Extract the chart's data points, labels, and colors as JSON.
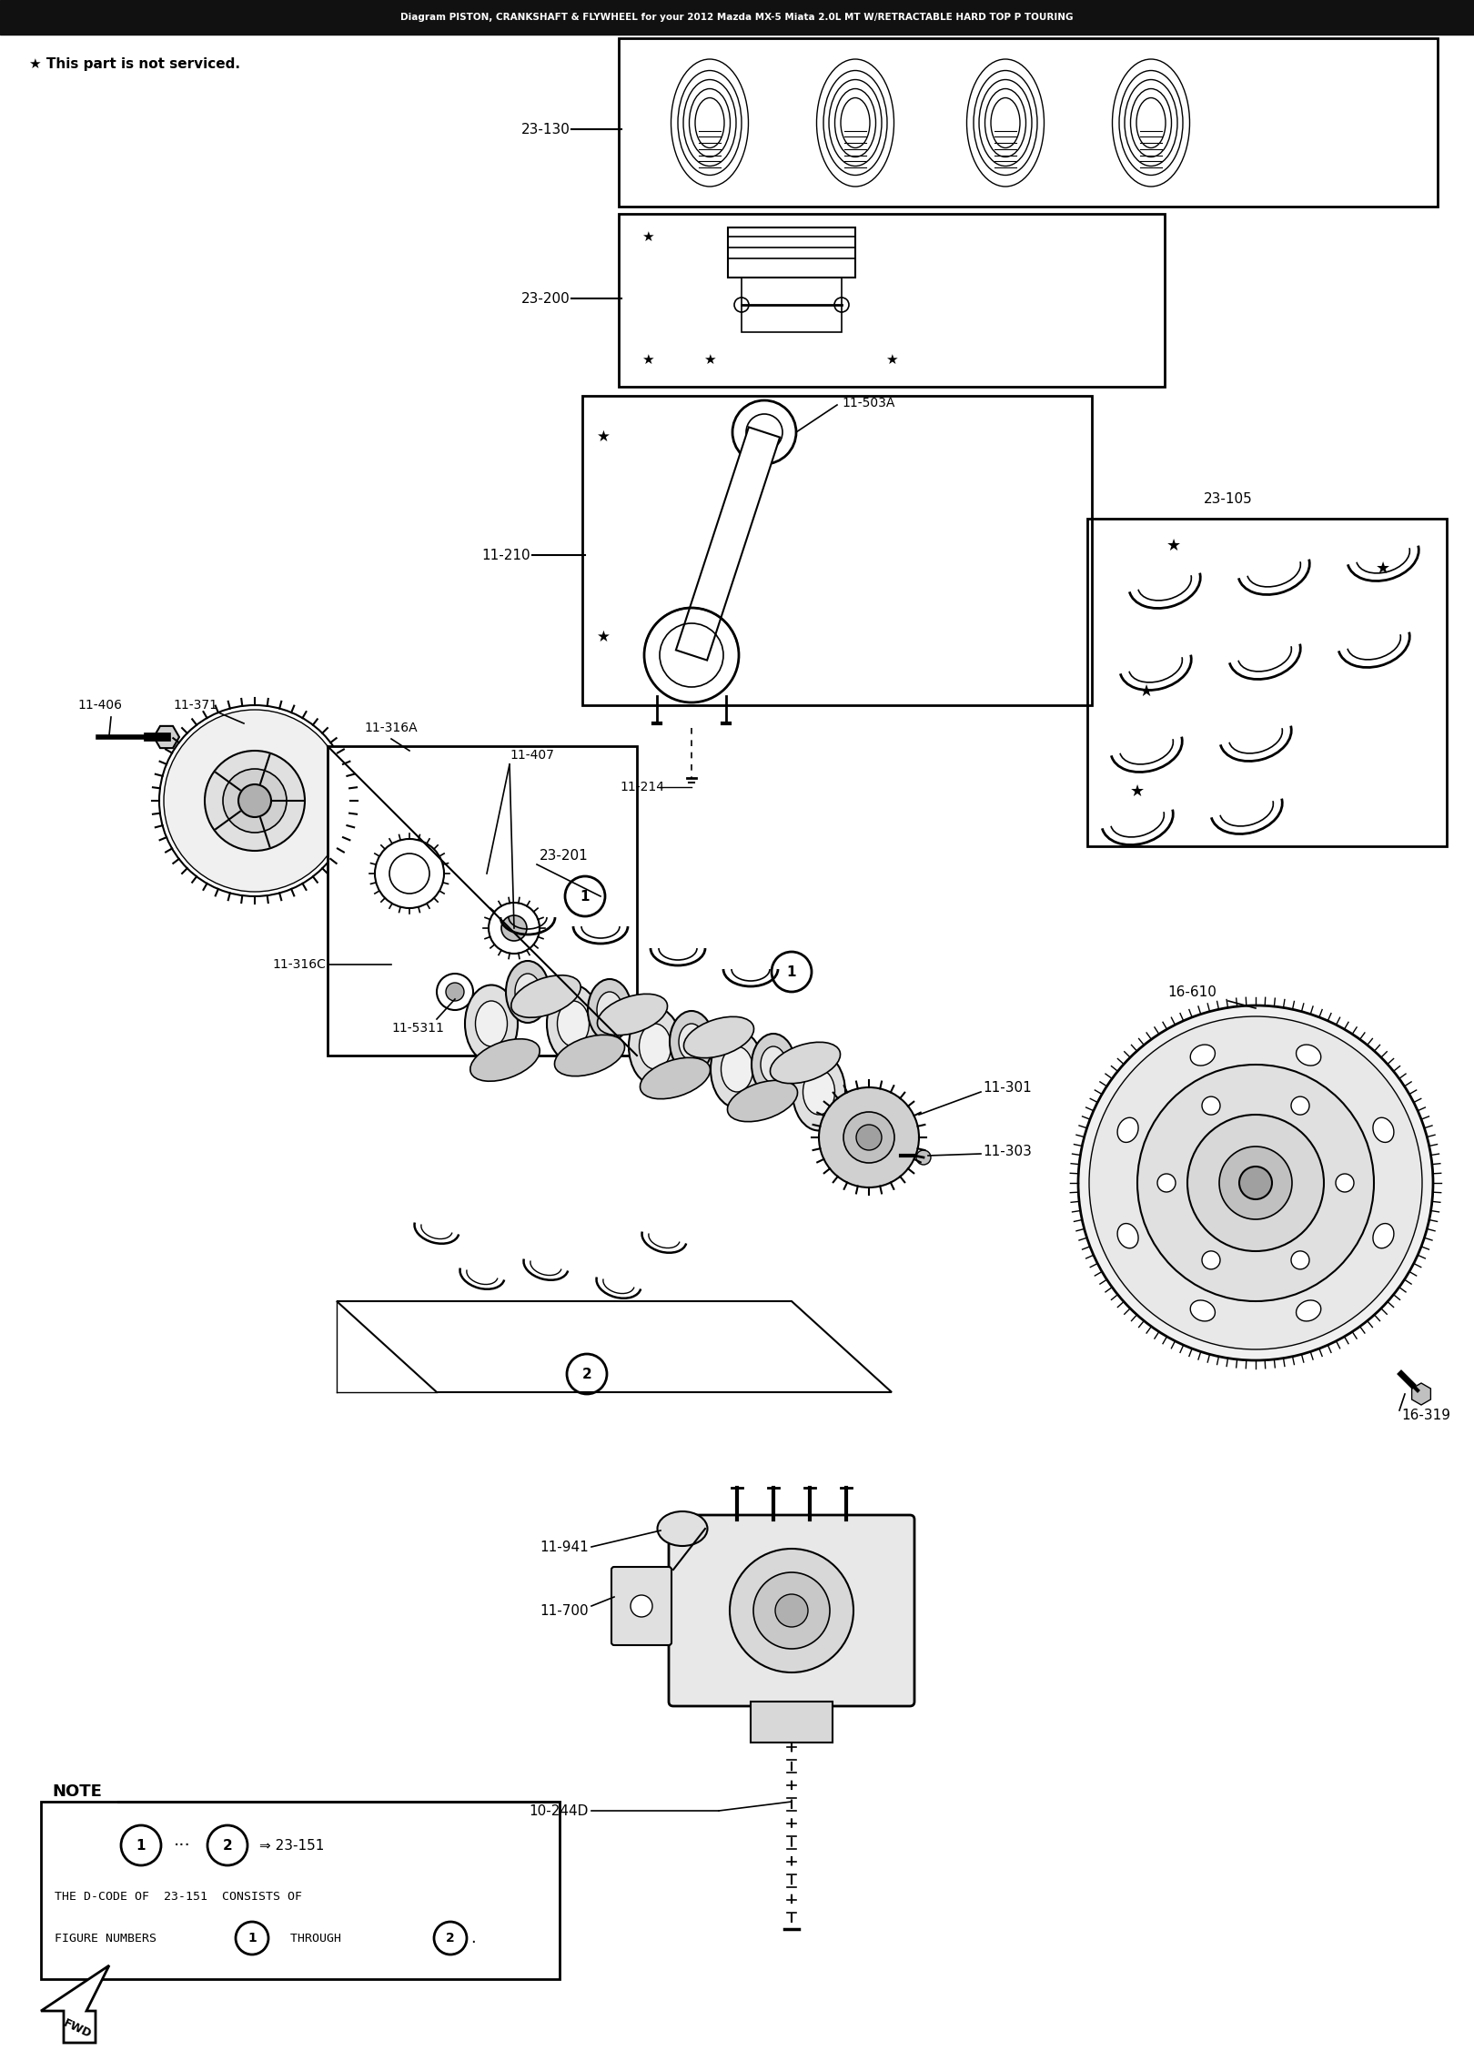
{
  "bg_color": "#ffffff",
  "fig_width": 16.2,
  "fig_height": 22.76,
  "title_bar_color": "#111111",
  "title_text": "Diagram PISTON, CRANKSHAFT & FLYWHEEL for your 2012 Mazda MX-5 Miata 2.0L MT W/RETRACTABLE HARD TOP P TOURING",
  "not_serviced_text": "★ This part is not serviced.",
  "note_line1": "     ⓘ  ···  ⓙ  ⇒ 23-151",
  "note_line2": "THE D-CODE OF  23-151  CONSISTS OF",
  "note_line3": "FIGURE NUMBERS  ①  THROUGH  ② ."
}
